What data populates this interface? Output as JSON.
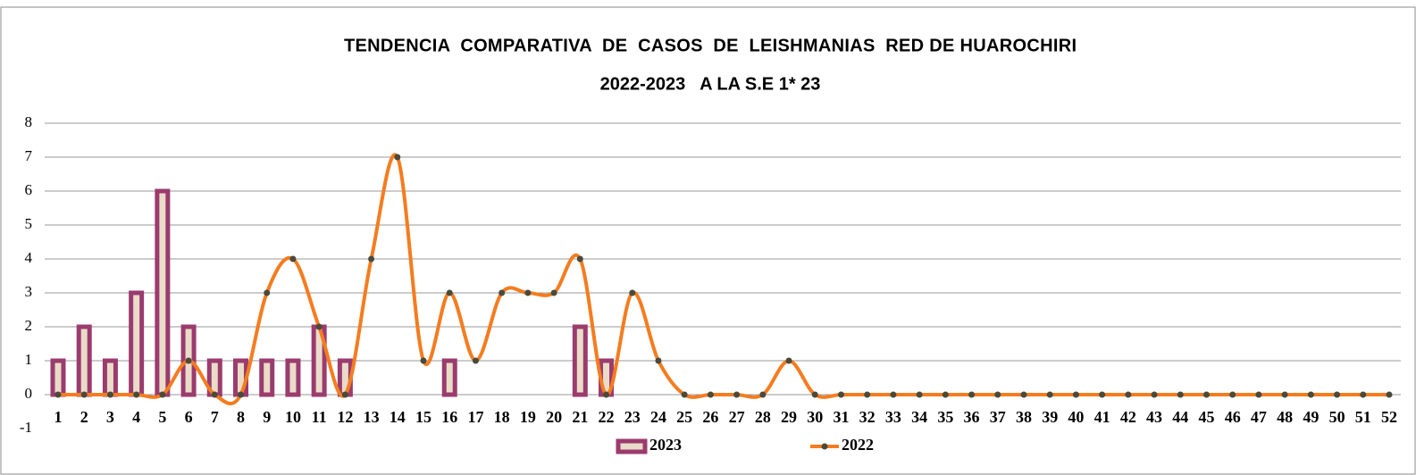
{
  "chart_data": {
    "type": "bar_line",
    "title": "TENDENCIA  COMPARATIVA  DE  CASOS  DE  LEISHMANIAS  RED DE HUAROCHIRI",
    "subtitle": "2022-2023   A LA S.E 1* 23",
    "categories": [
      "1",
      "2",
      "3",
      "4",
      "5",
      "6",
      "7",
      "8",
      "9",
      "10",
      "11",
      "12",
      "13",
      "14",
      "15",
      "16",
      "17",
      "18",
      "19",
      "20",
      "21",
      "22",
      "23",
      "24",
      "25",
      "26",
      "27",
      "28",
      "29",
      "30",
      "31",
      "32",
      "33",
      "34",
      "35",
      "36",
      "37",
      "38",
      "39",
      "40",
      "41",
      "42",
      "43",
      "44",
      "45",
      "46",
      "47",
      "48",
      "49",
      "50",
      "51",
      "52"
    ],
    "series": [
      {
        "name": "2023",
        "type": "bar",
        "color": "#9b3b6e",
        "fill": "#e9dcc9",
        "values": [
          1,
          2,
          1,
          3,
          6,
          2,
          1,
          1,
          1,
          1,
          2,
          1,
          0,
          0,
          0,
          1,
          0,
          0,
          0,
          0,
          2,
          1,
          0,
          null,
          null,
          null,
          null,
          null,
          null,
          null,
          null,
          null,
          null,
          null,
          null,
          null,
          null,
          null,
          null,
          null,
          null,
          null,
          null,
          null,
          null,
          null,
          null,
          null,
          null,
          null,
          null,
          null
        ]
      },
      {
        "name": "2022",
        "type": "line",
        "color": "#f57c1f",
        "marker_color": "#4a4a3a",
        "values": [
          0,
          0,
          0,
          0,
          0,
          1,
          0,
          0,
          3,
          4,
          2,
          0,
          4,
          7,
          1,
          3,
          1,
          3,
          3,
          3,
          4,
          0,
          3,
          1,
          0,
          0,
          0,
          0,
          1,
          0,
          0,
          0,
          0,
          0,
          0,
          0,
          0,
          0,
          0,
          0,
          0,
          0,
          0,
          0,
          0,
          0,
          0,
          0,
          0,
          0,
          0,
          0
        ]
      }
    ],
    "ylim": [
      -1,
      8
    ],
    "yticks": [
      -1,
      0,
      1,
      2,
      3,
      4,
      5,
      6,
      7,
      8
    ],
    "grid": true,
    "legend": "bottom"
  }
}
